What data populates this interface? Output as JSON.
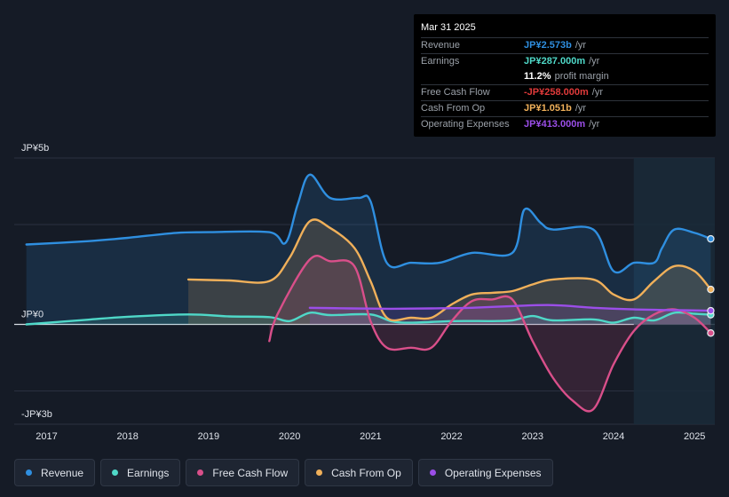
{
  "chart_data": {
    "type": "area",
    "currency_unit": "JP¥",
    "y_tick_labels": [
      {
        "label": "JP¥5b",
        "value": 5
      },
      {
        "label": "JP¥0",
        "value": 0
      },
      {
        "label": "-JP¥3b",
        "value": -3
      }
    ],
    "ylim": [
      -3,
      5
    ],
    "x_tick_labels": [
      "2017",
      "2018",
      "2019",
      "2020",
      "2021",
      "2022",
      "2023",
      "2024",
      "2025"
    ],
    "xlim": [
      2016.6,
      2025.25
    ],
    "forecast_start": 2024.25,
    "series": [
      {
        "name": "Revenue",
        "color": "#2f8fe0",
        "points": [
          [
            2016.75,
            2.4
          ],
          [
            2017.5,
            2.5
          ],
          [
            2018.0,
            2.6
          ],
          [
            2018.6,
            2.75
          ],
          [
            2019.0,
            2.77
          ],
          [
            2019.75,
            2.77
          ],
          [
            2019.95,
            2.45
          ],
          [
            2020.1,
            3.6
          ],
          [
            2020.25,
            4.5
          ],
          [
            2020.5,
            3.8
          ],
          [
            2020.85,
            3.8
          ],
          [
            2021.0,
            3.7
          ],
          [
            2021.2,
            1.85
          ],
          [
            2021.5,
            1.85
          ],
          [
            2021.85,
            1.85
          ],
          [
            2022.25,
            2.15
          ],
          [
            2022.75,
            2.15
          ],
          [
            2022.9,
            3.45
          ],
          [
            2023.1,
            3.05
          ],
          [
            2023.25,
            2.85
          ],
          [
            2023.75,
            2.85
          ],
          [
            2024.0,
            1.6
          ],
          [
            2024.25,
            1.85
          ],
          [
            2024.5,
            1.85
          ],
          [
            2024.6,
            2.3
          ],
          [
            2024.75,
            2.85
          ],
          [
            2025.0,
            2.75
          ],
          [
            2025.2,
            2.57
          ]
        ]
      },
      {
        "name": "Earnings",
        "color": "#4fd8c8",
        "points": [
          [
            2016.75,
            0.0
          ],
          [
            2017.5,
            0.14
          ],
          [
            2018.0,
            0.23
          ],
          [
            2018.75,
            0.3
          ],
          [
            2019.25,
            0.24
          ],
          [
            2019.75,
            0.22
          ],
          [
            2020.0,
            0.1
          ],
          [
            2020.25,
            0.35
          ],
          [
            2020.5,
            0.28
          ],
          [
            2021.0,
            0.3
          ],
          [
            2021.25,
            0.1
          ],
          [
            2021.5,
            0.05
          ],
          [
            2022.0,
            0.1
          ],
          [
            2022.5,
            0.1
          ],
          [
            2022.75,
            0.12
          ],
          [
            2023.0,
            0.25
          ],
          [
            2023.25,
            0.12
          ],
          [
            2023.75,
            0.15
          ],
          [
            2024.0,
            0.05
          ],
          [
            2024.25,
            0.2
          ],
          [
            2024.5,
            0.12
          ],
          [
            2024.75,
            0.35
          ],
          [
            2025.0,
            0.32
          ],
          [
            2025.2,
            0.29
          ]
        ]
      },
      {
        "name": "Free Cash Flow",
        "color": "#d94f8a",
        "points": [
          [
            2019.75,
            -0.5
          ],
          [
            2019.85,
            0.3
          ],
          [
            2020.25,
            1.95
          ],
          [
            2020.5,
            1.9
          ],
          [
            2020.8,
            1.75
          ],
          [
            2021.0,
            0.1
          ],
          [
            2021.2,
            -0.7
          ],
          [
            2021.5,
            -0.7
          ],
          [
            2021.75,
            -0.7
          ],
          [
            2022.0,
            0.1
          ],
          [
            2022.25,
            0.7
          ],
          [
            2022.5,
            0.75
          ],
          [
            2022.75,
            0.75
          ],
          [
            2023.0,
            -0.5
          ],
          [
            2023.25,
            -1.6
          ],
          [
            2023.5,
            -2.3
          ],
          [
            2023.75,
            -2.55
          ],
          [
            2024.0,
            -1.2
          ],
          [
            2024.25,
            -0.2
          ],
          [
            2024.5,
            0.3
          ],
          [
            2024.75,
            0.45
          ],
          [
            2025.0,
            0.2
          ],
          [
            2025.2,
            -0.26
          ]
        ]
      },
      {
        "name": "Cash From Op",
        "color": "#f0b05a",
        "points": [
          [
            2018.75,
            1.35
          ],
          [
            2019.25,
            1.32
          ],
          [
            2019.75,
            1.3
          ],
          [
            2020.0,
            2.0
          ],
          [
            2020.25,
            3.1
          ],
          [
            2020.5,
            2.9
          ],
          [
            2020.8,
            2.3
          ],
          [
            2021.0,
            1.3
          ],
          [
            2021.2,
            0.2
          ],
          [
            2021.5,
            0.2
          ],
          [
            2021.75,
            0.2
          ],
          [
            2022.0,
            0.6
          ],
          [
            2022.25,
            0.9
          ],
          [
            2022.5,
            0.95
          ],
          [
            2022.75,
            1.0
          ],
          [
            2023.0,
            1.2
          ],
          [
            2023.25,
            1.35
          ],
          [
            2023.75,
            1.35
          ],
          [
            2024.0,
            0.9
          ],
          [
            2024.25,
            0.75
          ],
          [
            2024.5,
            1.3
          ],
          [
            2024.75,
            1.75
          ],
          [
            2025.0,
            1.6
          ],
          [
            2025.2,
            1.05
          ]
        ]
      },
      {
        "name": "Operating Expenses",
        "color": "#9b4ee8",
        "points": [
          [
            2020.25,
            0.5
          ],
          [
            2020.75,
            0.48
          ],
          [
            2021.25,
            0.47
          ],
          [
            2021.75,
            0.48
          ],
          [
            2022.25,
            0.5
          ],
          [
            2022.75,
            0.55
          ],
          [
            2023.25,
            0.58
          ],
          [
            2023.75,
            0.5
          ],
          [
            2024.25,
            0.45
          ],
          [
            2024.75,
            0.43
          ],
          [
            2025.2,
            0.41
          ]
        ]
      }
    ]
  },
  "tooltip": {
    "date": "Mar 31 2025",
    "rows": [
      {
        "label": "Revenue",
        "value": "JP¥2.573b",
        "unit": "/yr",
        "color": "#2f8fe0"
      },
      {
        "label": "Earnings",
        "value": "JP¥287.000m",
        "unit": "/yr",
        "color": "#4fd8c8"
      },
      {
        "label": "",
        "value": "11.2%",
        "unit": "profit margin",
        "color": "#ffffff"
      },
      {
        "label": "Free Cash Flow",
        "value": "-JP¥258.000m",
        "unit": "/yr",
        "color": "#e03a3a"
      },
      {
        "label": "Cash From Op",
        "value": "JP¥1.051b",
        "unit": "/yr",
        "color": "#f0b05a"
      },
      {
        "label": "Operating Expenses",
        "value": "JP¥413.000m",
        "unit": "/yr",
        "color": "#9b4ee8"
      }
    ]
  },
  "legend": [
    {
      "label": "Revenue",
      "color": "#2f8fe0"
    },
    {
      "label": "Earnings",
      "color": "#4fd8c8"
    },
    {
      "label": "Free Cash Flow",
      "color": "#d94f8a"
    },
    {
      "label": "Cash From Op",
      "color": "#f0b05a"
    },
    {
      "label": "Operating Expenses",
      "color": "#9b4ee8"
    }
  ]
}
